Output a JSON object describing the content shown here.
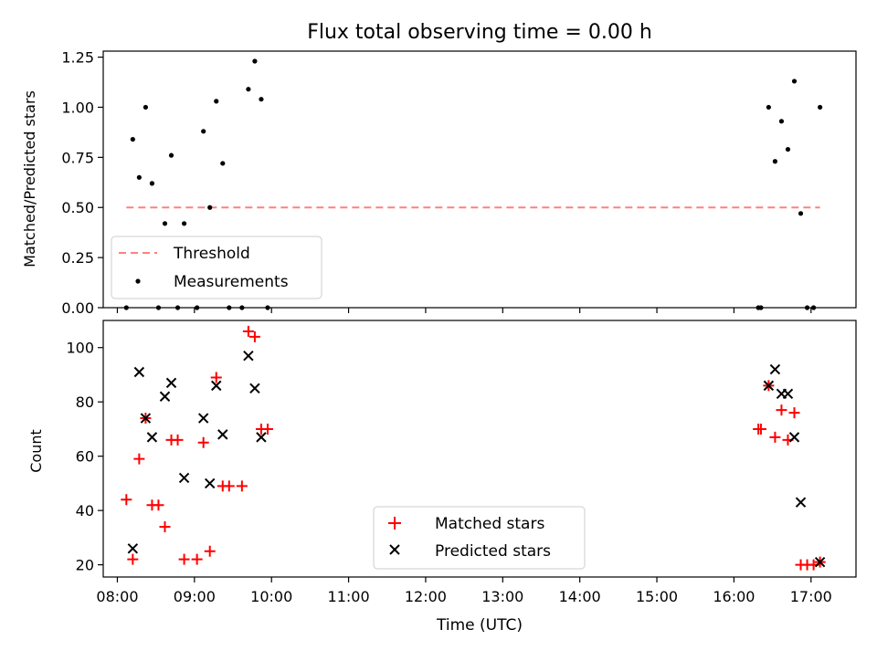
{
  "figure": {
    "title": "Flux total observing time = 0.00 h",
    "xlabel": "Time (UTC)"
  },
  "colors": {
    "threshold": "#ff8080",
    "measurements": "#000000",
    "matched": "#ff0000",
    "predicted": "#000000"
  },
  "chart_data": [
    {
      "type": "scatter",
      "panel": "top",
      "ylabel": "Matched/Predicted stars",
      "xlim": [
        "07:49",
        "17:35"
      ],
      "ylim": [
        0,
        1.28
      ],
      "yticks": [
        0.0,
        0.25,
        0.5,
        0.75,
        1.0,
        1.25
      ],
      "ytick_labels": [
        "0.00",
        "0.25",
        "0.50",
        "0.75",
        "1.00",
        "1.25"
      ],
      "xticks": [
        "08:00",
        "09:00",
        "10:00",
        "11:00",
        "12:00",
        "13:00",
        "14:00",
        "15:00",
        "16:00",
        "17:00"
      ],
      "grid": false,
      "legend": {
        "position": "lower-left",
        "entries": [
          "Threshold",
          "Measurements"
        ]
      },
      "series": [
        {
          "name": "Threshold",
          "kind": "dashed-line",
          "points": [
            [
              "08:07",
              0.5
            ],
            [
              "17:07",
              0.5
            ]
          ]
        },
        {
          "name": "Measurements",
          "kind": "dots",
          "points": [
            [
              "08:07",
              0.0
            ],
            [
              "08:12",
              0.84
            ],
            [
              "08:17",
              0.65
            ],
            [
              "08:22",
              1.0
            ],
            [
              "08:27",
              0.62
            ],
            [
              "08:32",
              0.0
            ],
            [
              "08:37",
              0.42
            ],
            [
              "08:42",
              0.76
            ],
            [
              "08:47",
              0.0
            ],
            [
              "08:52",
              0.42
            ],
            [
              "09:02",
              0.0
            ],
            [
              "09:07",
              0.88
            ],
            [
              "09:12",
              0.5
            ],
            [
              "09:17",
              1.03
            ],
            [
              "09:22",
              0.72
            ],
            [
              "09:27",
              0.0
            ],
            [
              "09:37",
              0.0
            ],
            [
              "09:42",
              1.09
            ],
            [
              "09:47",
              1.23
            ],
            [
              "09:52",
              1.04
            ],
            [
              "09:57",
              0.0
            ],
            [
              "16:19",
              0.0
            ],
            [
              "16:21",
              0.0
            ],
            [
              "16:27",
              1.0
            ],
            [
              "16:32",
              0.73
            ],
            [
              "16:37",
              0.93
            ],
            [
              "16:42",
              0.79
            ],
            [
              "16:47",
              1.13
            ],
            [
              "16:52",
              0.47
            ],
            [
              "16:57",
              0.0
            ],
            [
              "17:02",
              0.0
            ],
            [
              "17:07",
              1.0
            ]
          ]
        }
      ]
    },
    {
      "type": "scatter",
      "panel": "bottom",
      "ylabel": "Count",
      "xlabel": "Time (UTC)",
      "xlim": [
        "07:49",
        "17:35"
      ],
      "ylim": [
        15.5,
        110
      ],
      "yticks": [
        20,
        40,
        60,
        80,
        100
      ],
      "ytick_labels": [
        "20",
        "40",
        "60",
        "80",
        "100"
      ],
      "xticks": [
        "08:00",
        "09:00",
        "10:00",
        "11:00",
        "12:00",
        "13:00",
        "14:00",
        "15:00",
        "16:00",
        "17:00"
      ],
      "grid": false,
      "legend": {
        "position": "lower-center",
        "entries": [
          "Matched stars",
          "Predicted stars"
        ]
      },
      "series": [
        {
          "name": "Matched stars",
          "marker": "+",
          "points": [
            [
              "08:07",
              44
            ],
            [
              "08:12",
              22
            ],
            [
              "08:17",
              59
            ],
            [
              "08:22",
              74
            ],
            [
              "08:27",
              42
            ],
            [
              "08:32",
              42
            ],
            [
              "08:37",
              34
            ],
            [
              "08:42",
              66
            ],
            [
              "08:47",
              66
            ],
            [
              "08:52",
              22
            ],
            [
              "09:02",
              22
            ],
            [
              "09:07",
              65
            ],
            [
              "09:12",
              25
            ],
            [
              "09:17",
              89
            ],
            [
              "09:22",
              49
            ],
            [
              "09:27",
              49
            ],
            [
              "09:37",
              49
            ],
            [
              "09:42",
              106
            ],
            [
              "09:47",
              104
            ],
            [
              "09:52",
              70
            ],
            [
              "09:57",
              70
            ],
            [
              "16:19",
              70
            ],
            [
              "16:21",
              70
            ],
            [
              "16:27",
              86
            ],
            [
              "16:32",
              67
            ],
            [
              "16:37",
              77
            ],
            [
              "16:42",
              66
            ],
            [
              "16:47",
              76
            ],
            [
              "16:52",
              20
            ],
            [
              "16:57",
              20
            ],
            [
              "17:02",
              20
            ],
            [
              "17:07",
              21
            ]
          ]
        },
        {
          "name": "Predicted stars",
          "marker": "x",
          "points": [
            [
              "08:12",
              26
            ],
            [
              "08:17",
              91
            ],
            [
              "08:22",
              74
            ],
            [
              "08:27",
              67
            ],
            [
              "08:37",
              82
            ],
            [
              "08:42",
              87
            ],
            [
              "08:52",
              52
            ],
            [
              "09:07",
              74
            ],
            [
              "09:12",
              50
            ],
            [
              "09:17",
              86
            ],
            [
              "09:22",
              68
            ],
            [
              "09:42",
              97
            ],
            [
              "09:47",
              85
            ],
            [
              "09:52",
              67
            ],
            [
              "16:27",
              86
            ],
            [
              "16:32",
              92
            ],
            [
              "16:37",
              83
            ],
            [
              "16:42",
              83
            ],
            [
              "16:47",
              67
            ],
            [
              "16:52",
              43
            ],
            [
              "17:07",
              21
            ]
          ]
        }
      ]
    }
  ]
}
